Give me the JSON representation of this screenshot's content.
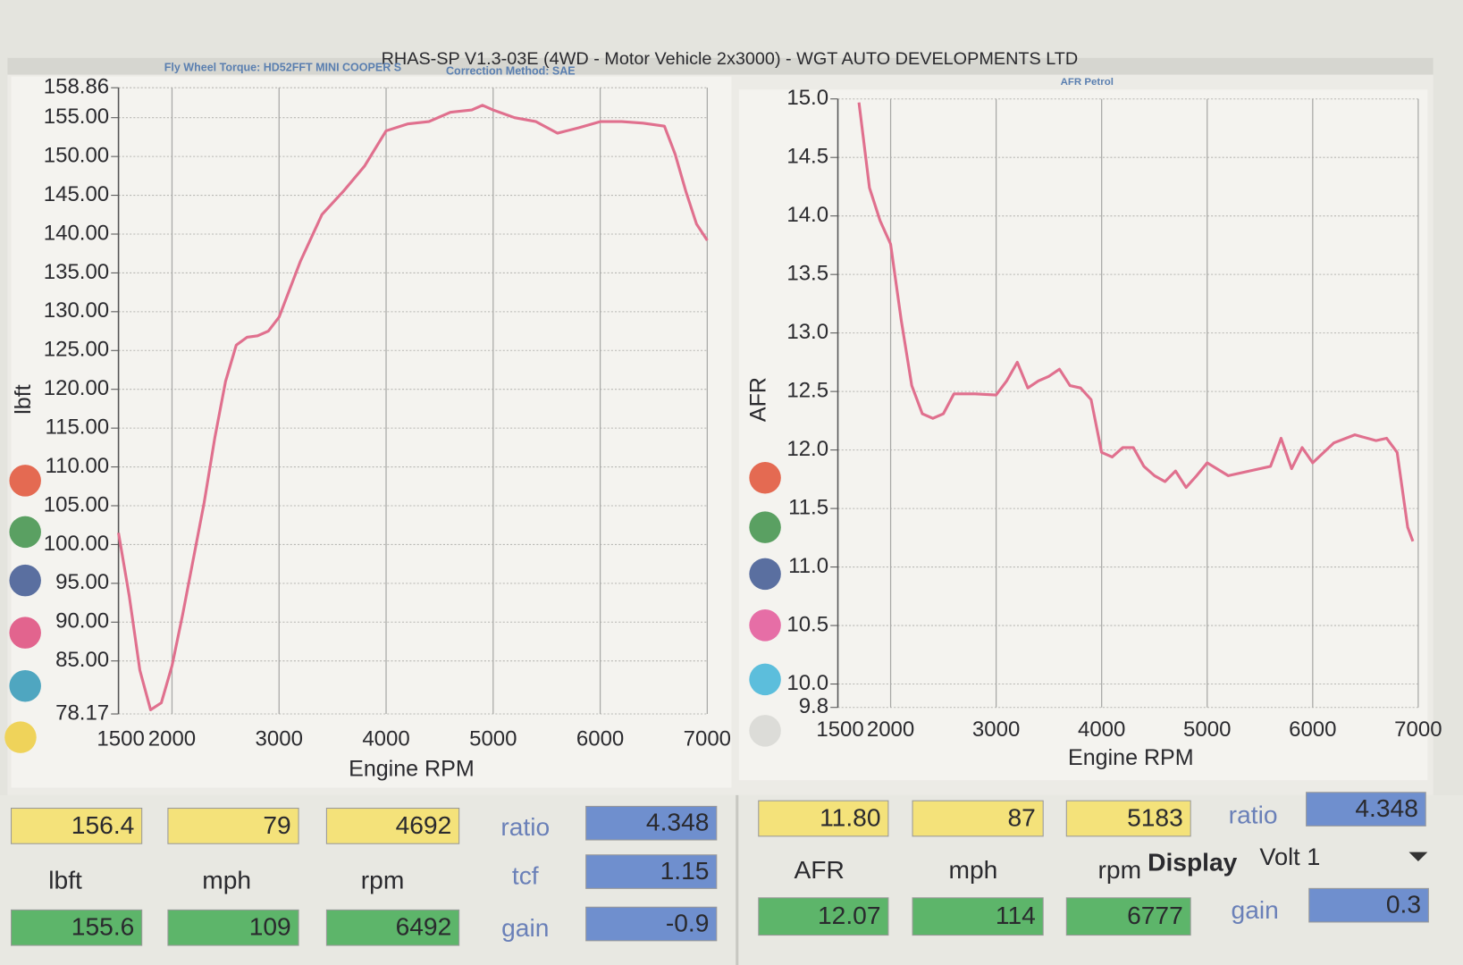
{
  "header": {
    "title": "RHAS-SP V1.3-03E  (4WD - Motor Vehicle 2x3000) - WGT AUTO DEVELOPMENTS LTD"
  },
  "chart_data": [
    {
      "type": "line",
      "annotations": [
        "Fly Wheel Torque: HD52FFT MINI COOPER S",
        "Correction Method: SAE"
      ],
      "x_label": "Engine RPM",
      "y_label": "lbft",
      "x": [
        1500,
        1600,
        1700,
        1800,
        1900,
        2000,
        2100,
        2200,
        2300,
        2400,
        2500,
        2600,
        2700,
        2800,
        2900,
        3000,
        3200,
        3400,
        3600,
        3800,
        4000,
        4200,
        4400,
        4600,
        4800,
        4900,
        5000,
        5200,
        5400,
        5600,
        5800,
        6000,
        6200,
        6400,
        6600,
        6700,
        6800,
        6900,
        7000
      ],
      "values": [
        101.5,
        93.4,
        83.8,
        78.7,
        79.6,
        84.4,
        91,
        98.2,
        105.4,
        113.8,
        121,
        125.7,
        126.7,
        126.9,
        127.5,
        129.3,
        136.5,
        142.5,
        145.5,
        148.8,
        153.3,
        154.2,
        154.5,
        155.7,
        156,
        156.6,
        156,
        155,
        154.5,
        153,
        153.7,
        154.5,
        154.5,
        154.3,
        153.9,
        150.3,
        145.5,
        141.3,
        139.2
      ],
      "color": "#e0708e",
      "xlim": [
        1500,
        7000
      ],
      "xticks": [
        1500,
        2000,
        3000,
        4000,
        5000,
        6000,
        7000
      ],
      "ylim": [
        78.17,
        158.86
      ],
      "yticks": [
        78.17,
        {
          "value": 85,
          "label": "85.00"
        },
        {
          "value": 90,
          "label": "90.00"
        },
        {
          "value": 95,
          "label": "95.00"
        },
        {
          "value": 100,
          "label": "100.00"
        },
        {
          "value": 105,
          "label": "105.00"
        },
        {
          "value": 110,
          "label": "110.00"
        },
        {
          "value": 115,
          "label": "115.00"
        },
        {
          "value": 120,
          "label": "120.00"
        },
        {
          "value": 125,
          "label": "125.00"
        },
        {
          "value": 130,
          "label": "130.00"
        },
        {
          "value": 135,
          "label": "135.00"
        },
        {
          "value": 140,
          "label": "140.00"
        },
        {
          "value": 145,
          "label": "145.00"
        },
        {
          "value": 150,
          "label": "150.00"
        },
        {
          "value": 155,
          "label": "155.00"
        },
        158.86
      ],
      "grid": true
    },
    {
      "type": "line",
      "subtitle": "AFR Petrol",
      "x_label": "Engine RPM",
      "y_label": "AFR",
      "x": [
        1700,
        1800,
        1900,
        2000,
        2100,
        2200,
        2300,
        2400,
        2500,
        2600,
        2800,
        3000,
        3100,
        3200,
        3300,
        3400,
        3500,
        3600,
        3700,
        3800,
        3900,
        4000,
        4100,
        4200,
        4300,
        4400,
        4500,
        4600,
        4700,
        4800,
        4900,
        5000,
        5200,
        5400,
        5600,
        5700,
        5800,
        5900,
        6000,
        6200,
        6400,
        6600,
        6700,
        6800,
        6900,
        6950
      ],
      "values": [
        14.97,
        14.24,
        13.96,
        13.76,
        13.11,
        12.55,
        12.31,
        12.27,
        12.31,
        12.48,
        12.48,
        12.47,
        12.59,
        12.75,
        12.53,
        12.59,
        12.63,
        12.69,
        12.55,
        12.53,
        12.43,
        11.98,
        11.94,
        12.02,
        12.02,
        11.86,
        11.78,
        11.73,
        11.82,
        11.68,
        11.78,
        11.89,
        11.78,
        11.82,
        11.86,
        12.1,
        11.84,
        12.02,
        11.89,
        12.06,
        12.13,
        12.08,
        12.1,
        11.98,
        11.34,
        11.22
      ],
      "color": "#e0708e",
      "xlim": [
        1500,
        7000
      ],
      "xticks": [
        1500,
        2000,
        3000,
        4000,
        5000,
        6000,
        7000
      ],
      "ylim": [
        9.8,
        15
      ],
      "yticks": [
        9.8,
        {
          "value": 10,
          "label": "10.0"
        },
        10.5,
        {
          "value": 11,
          "label": "11.0"
        },
        11.5,
        {
          "value": 12,
          "label": "12.0"
        },
        12.5,
        {
          "value": 13,
          "label": "13.0"
        },
        13.5,
        {
          "value": 14,
          "label": "14.0"
        },
        14.5,
        {
          "value": 15,
          "label": "15.0"
        }
      ],
      "grid": true
    }
  ],
  "readouts": {
    "left": {
      "top": [
        "156.4",
        "79",
        "4692"
      ],
      "units": [
        "lbft",
        "mph",
        "rpm"
      ],
      "bottom": [
        "155.6",
        "109",
        "6492"
      ],
      "params": [
        {
          "label": "ratio",
          "value": "4.348"
        },
        {
          "label": "tcf",
          "value": "1.15"
        },
        {
          "label": "gain",
          "value": "-0.9"
        }
      ]
    },
    "right": {
      "top": [
        "11.80",
        "87",
        "5183"
      ],
      "units": [
        "AFR",
        "mph",
        "rpm"
      ],
      "bottom": [
        "12.07",
        "114",
        "6777"
      ],
      "params": [
        {
          "label": "ratio",
          "value": "4.348"
        },
        {
          "label": "gain",
          "value": "0.3"
        }
      ],
      "display_label": "Display",
      "display_value": "Volt 1"
    }
  }
}
